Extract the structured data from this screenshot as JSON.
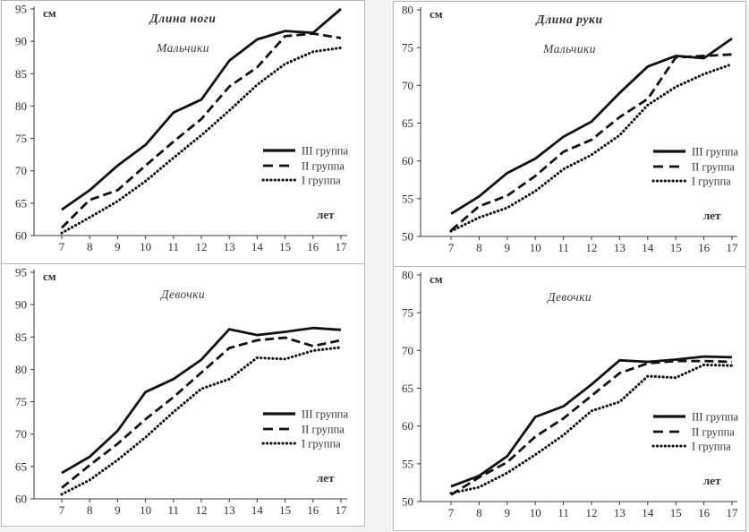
{
  "page": {
    "colors": {
      "line": "#111111",
      "axis": "#3a3a3a",
      "text": "#333333",
      "panel_border": "#b5b5b5",
      "background": "#ffffff"
    }
  },
  "chart_data": [
    {
      "type": "line",
      "title": "Длина ноги",
      "subtitle": "Мальчики",
      "y_unit": "см",
      "x_unit": "лет",
      "ylim": [
        60,
        95
      ],
      "ystep": 5,
      "grid": false,
      "legend_position": "right-middle",
      "x": [
        7,
        8,
        9,
        10,
        11,
        12,
        13,
        14,
        15,
        16,
        17
      ],
      "series": [
        {
          "name": "III группа",
          "style": "solid",
          "values": [
            64,
            67,
            70.8,
            74,
            79,
            81,
            87,
            90.3,
            91.6,
            91.3,
            95
          ]
        },
        {
          "name": "II группа",
          "style": "dashed",
          "values": [
            61.2,
            65.5,
            67,
            70.8,
            74.5,
            78,
            83,
            86,
            90.8,
            91.2,
            90.5
          ]
        },
        {
          "name": "I группа",
          "style": "dotted",
          "values": [
            60.4,
            62.8,
            65.3,
            68.4,
            72,
            75.5,
            79.3,
            83.3,
            86.5,
            88.4,
            89
          ]
        }
      ]
    },
    {
      "type": "line",
      "title": "Длина руки",
      "subtitle": "Мальчики",
      "y_unit": "см",
      "x_unit": "лет",
      "ylim": [
        50,
        80
      ],
      "ystep": 5,
      "grid": false,
      "legend_position": "right-middle",
      "x": [
        7,
        8,
        9,
        10,
        11,
        12,
        13,
        14,
        15,
        16,
        17
      ],
      "series": [
        {
          "name": "III группа",
          "style": "solid",
          "values": [
            53,
            55.3,
            58.4,
            60.3,
            63.2,
            65.2,
            69,
            72.5,
            73.9,
            73.6,
            76.2
          ]
        },
        {
          "name": "II группа",
          "style": "dashed",
          "values": [
            50.8,
            54,
            55.4,
            58,
            61.2,
            62.8,
            65.8,
            68.2,
            73.7,
            73.9,
            74.1
          ]
        },
        {
          "name": "I группа",
          "style": "dotted",
          "values": [
            50.7,
            52.5,
            53.8,
            56,
            58.9,
            60.8,
            63.4,
            67.4,
            69.8,
            71.5,
            72.8
          ]
        }
      ]
    },
    {
      "type": "line",
      "title": "",
      "subtitle": "Девочки",
      "y_unit": "см",
      "x_unit": "лет",
      "ylim": [
        60,
        95
      ],
      "ystep": 5,
      "grid": false,
      "legend_position": "right-middle",
      "x": [
        7,
        8,
        9,
        10,
        11,
        12,
        13,
        14,
        15,
        16,
        17
      ],
      "series": [
        {
          "name": "III группа",
          "style": "solid",
          "values": [
            64,
            66.5,
            70.5,
            76.5,
            78.5,
            81.5,
            86.2,
            85.3,
            85.8,
            86.4,
            86.1
          ]
        },
        {
          "name": "II группа",
          "style": "dashed",
          "values": [
            61.7,
            65.2,
            68.5,
            72.3,
            75.7,
            79.5,
            83.3,
            84.5,
            84.9,
            83.6,
            84.5
          ]
        },
        {
          "name": "I группа",
          "style": "dotted",
          "values": [
            60.7,
            62.9,
            66,
            69.5,
            73.4,
            77,
            78.5,
            81.8,
            81.6,
            82.9,
            83.4
          ]
        }
      ]
    },
    {
      "type": "line",
      "title": "",
      "subtitle": "Девочки",
      "y_unit": "см",
      "x_unit": "лет",
      "ylim": [
        50,
        80
      ],
      "ystep": 5,
      "grid": false,
      "legend_position": "right-middle",
      "x": [
        7,
        8,
        9,
        10,
        11,
        12,
        13,
        14,
        15,
        16,
        17
      ],
      "series": [
        {
          "name": "III группа",
          "style": "solid",
          "values": [
            52,
            53.4,
            56,
            61.2,
            62.6,
            65.5,
            68.7,
            68.5,
            68.8,
            69.2,
            69.1
          ]
        },
        {
          "name": "II группа",
          "style": "dashed",
          "values": [
            50.9,
            53.2,
            55.2,
            58.6,
            61,
            64,
            67,
            68.3,
            68.6,
            68.6,
            68.5
          ]
        },
        {
          "name": "I группа",
          "style": "dotted",
          "values": [
            51.1,
            51.9,
            53.8,
            56.2,
            58.8,
            62,
            63.2,
            66.6,
            66.4,
            68.1,
            68
          ]
        }
      ]
    }
  ]
}
